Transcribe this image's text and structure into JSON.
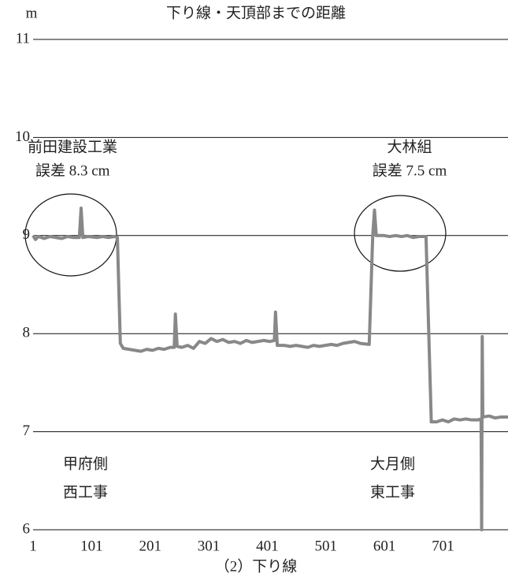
{
  "chart_data": {
    "type": "line",
    "title": "下り線・天頂部までの距離",
    "y_label": "m",
    "x_label": "（2）下り線",
    "annotations": [
      "前田建設工業",
      "誤差 8.3 cm",
      "大林組",
      "誤差 7.5 cm",
      "甲府側",
      "西工事",
      "大月側",
      "東工事"
    ],
    "xlim": [
      1,
      812
    ],
    "xticks": [
      1,
      101,
      201,
      301,
      401,
      501,
      601,
      701
    ],
    "ylim": [
      6,
      11
    ],
    "yticks": [
      6,
      7,
      8,
      9,
      10,
      11
    ],
    "grid": true,
    "series": [
      {
        "color": "#888888",
        "x": [
          1,
          5,
          10,
          20,
          30,
          40,
          50,
          60,
          70,
          80,
          83,
          86,
          95,
          110,
          120,
          130,
          140,
          145,
          150,
          155,
          165,
          175,
          185,
          195,
          205,
          215,
          225,
          235,
          242,
          244,
          247,
          255,
          265,
          275,
          285,
          295,
          305,
          315,
          325,
          335,
          345,
          355,
          365,
          375,
          385,
          395,
          405,
          413,
          415,
          418,
          430,
          440,
          450,
          460,
          470,
          480,
          490,
          500,
          510,
          520,
          530,
          540,
          550,
          560,
          575,
          581,
          584,
          587,
          600,
          610,
          620,
          630,
          640,
          650,
          660,
          672,
          681,
          690,
          700,
          710,
          720,
          730,
          740,
          750,
          760,
          766,
          767,
          768,
          769,
          780,
          790,
          800,
          812
        ],
        "values": [
          9.0,
          8.96,
          8.99,
          8.97,
          8.99,
          8.98,
          8.97,
          8.99,
          8.98,
          8.98,
          9.28,
          8.98,
          8.99,
          8.98,
          8.99,
          8.98,
          8.99,
          8.98,
          7.9,
          7.85,
          7.84,
          7.83,
          7.82,
          7.84,
          7.83,
          7.85,
          7.84,
          7.86,
          7.86,
          8.2,
          7.87,
          7.86,
          7.88,
          7.85,
          7.92,
          7.9,
          7.95,
          7.92,
          7.94,
          7.91,
          7.92,
          7.9,
          7.93,
          7.91,
          7.92,
          7.93,
          7.92,
          7.93,
          8.22,
          7.88,
          7.88,
          7.87,
          7.88,
          7.87,
          7.86,
          7.88,
          7.87,
          7.88,
          7.89,
          7.88,
          7.9,
          7.91,
          7.92,
          7.9,
          7.89,
          9.0,
          9.26,
          9.0,
          9.0,
          8.99,
          9.0,
          8.99,
          9.0,
          8.98,
          8.99,
          8.99,
          7.1,
          7.1,
          7.12,
          7.1,
          7.13,
          7.12,
          7.13,
          7.12,
          7.12,
          7.13,
          6.0,
          7.97,
          7.15,
          7.16,
          7.14,
          7.15,
          7.15
        ]
      }
    ]
  }
}
